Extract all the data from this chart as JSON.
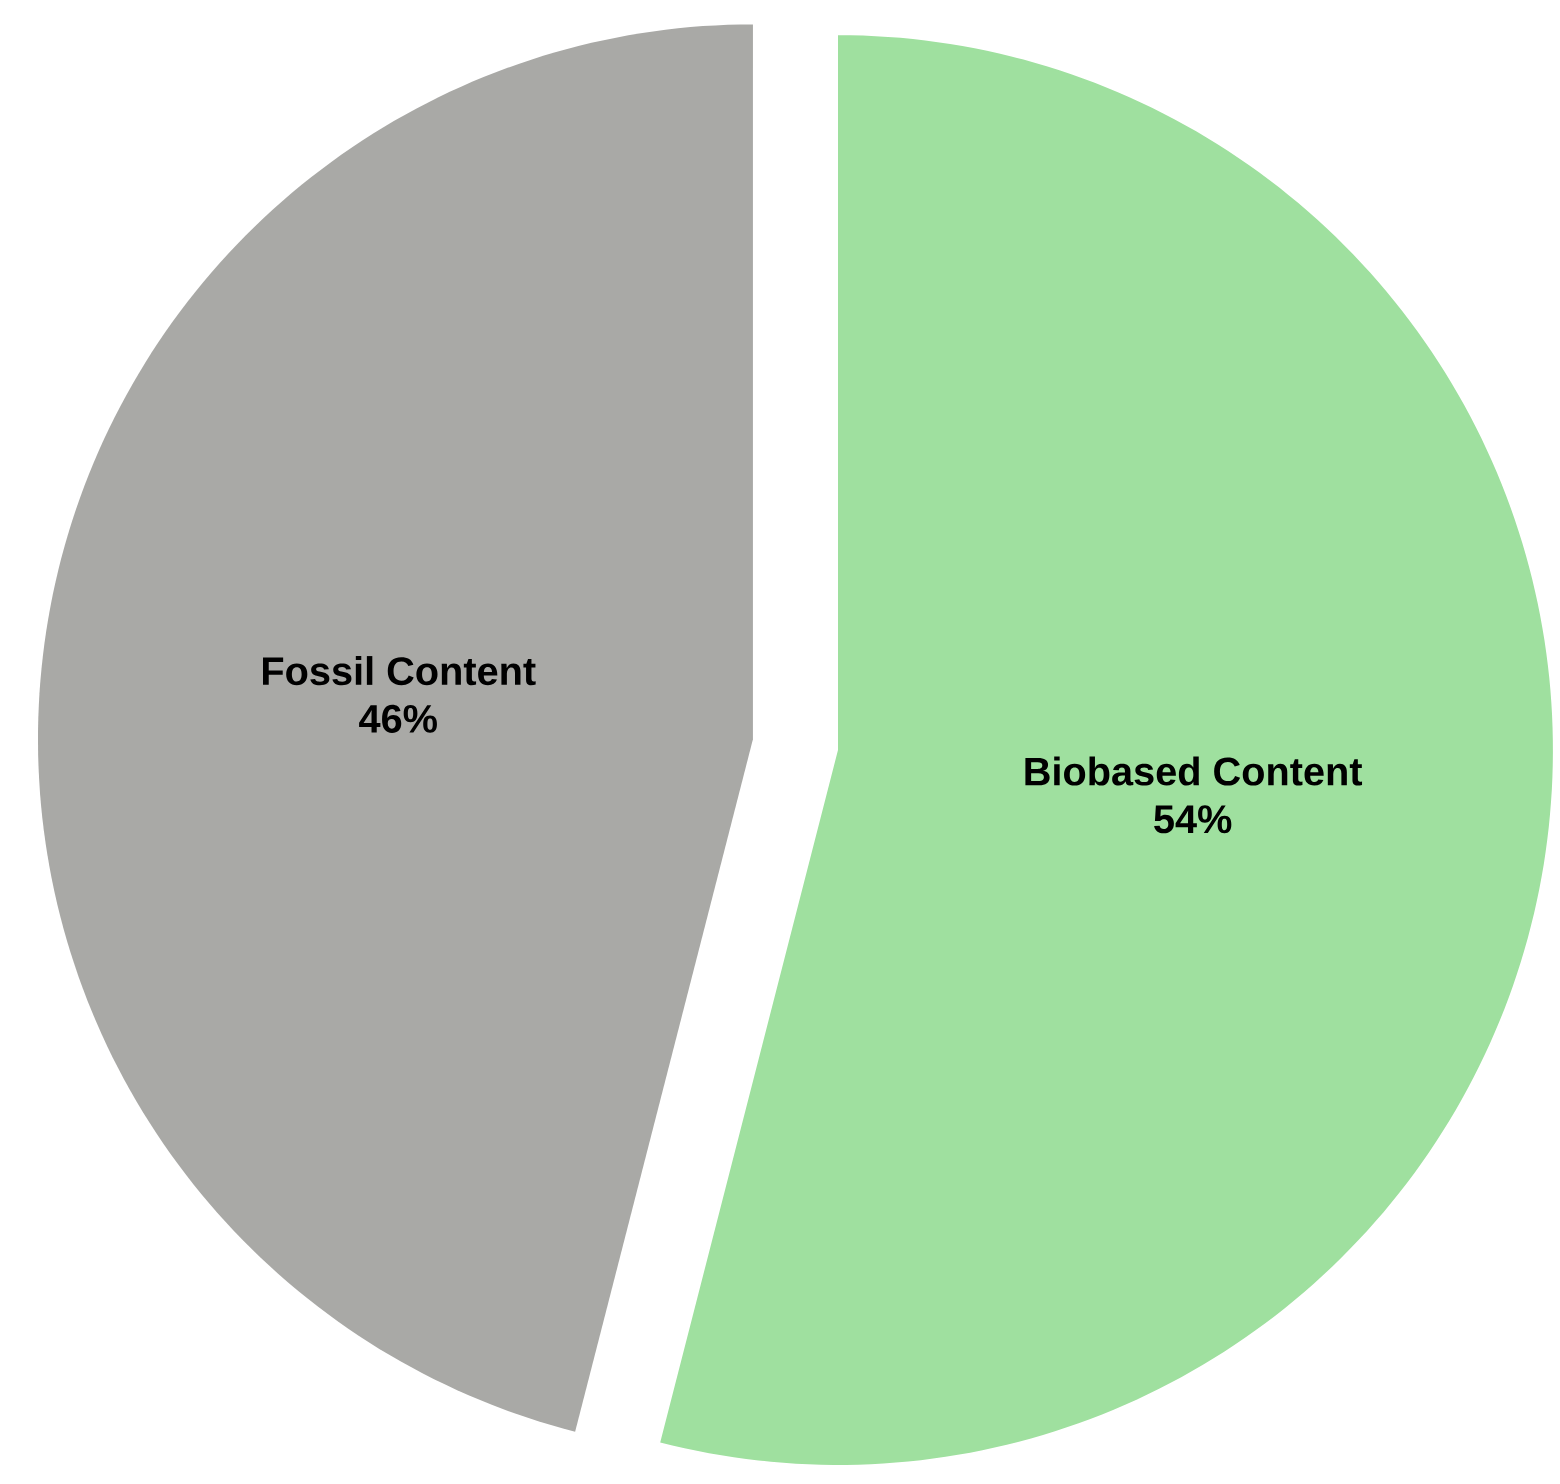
{
  "chart_data": {
    "type": "pie",
    "categories": [
      "Biobased Content",
      "Fossil Content"
    ],
    "values": [
      54,
      46
    ],
    "value_labels": [
      "54%",
      "46%"
    ],
    "colors": [
      "#9fe09f",
      "#a9a9a6"
    ]
  }
}
